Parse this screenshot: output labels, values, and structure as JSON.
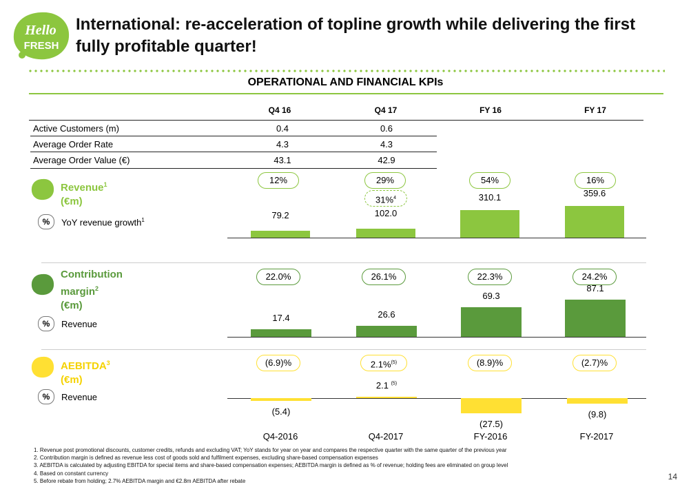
{
  "brand": {
    "logo_line1": "Hello",
    "logo_line2": "FRESH",
    "green": "#8cc63f",
    "dark_green": "#5a9a3c",
    "yellow": "#ffe033"
  },
  "title": "International: re-acceleration of topline growth while delivering the first fully profitable quarter!",
  "section_title": "OPERATIONAL AND FINANCIAL KPIs",
  "columns": [
    "Q4 16",
    "Q4 17",
    "FY 16",
    "FY 17"
  ],
  "kpis": [
    {
      "label": "Active Customers (m)",
      "q4_16": "0.4",
      "q4_17": "0.6"
    },
    {
      "label": "Average Order Rate",
      "q4_16": "4.3",
      "q4_17": "4.3"
    },
    {
      "label": "Average Order Value (€)",
      "q4_16": "43.1",
      "q4_17": "42.9"
    }
  ],
  "revenue": {
    "label_line1": "Revenue",
    "label_sup": "1",
    "label_line2": "(€m)",
    "badge": "%",
    "sub_label": "YoY revenue growth",
    "sub_sup": "1",
    "growth": [
      "12%",
      "29%",
      "54%",
      "16%"
    ],
    "constant_currency": "31%",
    "constant_currency_sup": "4"
  },
  "contribution": {
    "label_line1": "Contribution",
    "label_line2": "margin",
    "label_sup": "2",
    "label_line3": "(€m)",
    "badge": "%",
    "sub_label": "Revenue",
    "margin": [
      "22.0%",
      "26.1%",
      "22.3%",
      "24.2%"
    ]
  },
  "aebitda": {
    "label_line1": "AEBITDA",
    "label_sup": "3",
    "label_line2": "(€m)",
    "badge": "%",
    "sub_label": "Revenue",
    "margin": [
      "(6.9)%",
      "2.1%",
      "(8.9)%",
      "(2.7)%"
    ],
    "margin_q417_sup": "(5)",
    "value_q417_sup": "(5)"
  },
  "chart_data": [
    {
      "type": "bar",
      "title": "Revenue (€m)",
      "categories": [
        "Q4-2016",
        "Q4-2017",
        "FY-2016",
        "FY-2017"
      ],
      "values": [
        79.2,
        102.0,
        310.1,
        359.6
      ],
      "labels": [
        "79.2",
        "102.0",
        "310.1",
        "359.6"
      ],
      "ylim": [
        0,
        360
      ]
    },
    {
      "type": "bar",
      "title": "Contribution margin (€m)",
      "categories": [
        "Q4-2016",
        "Q4-2017",
        "FY-2016",
        "FY-2017"
      ],
      "values": [
        17.4,
        26.6,
        69.3,
        87.1
      ],
      "labels": [
        "17.4",
        "26.6",
        "69.3",
        "87.1"
      ],
      "ylim": [
        0,
        87.1
      ]
    },
    {
      "type": "bar",
      "title": "AEBITDA (€m)",
      "categories": [
        "Q4-2016",
        "Q4-2017",
        "FY-2016",
        "FY-2017"
      ],
      "values": [
        -5.4,
        2.1,
        -27.5,
        -9.8
      ],
      "labels": [
        "(5.4)",
        "2.1",
        "(27.5)",
        "(9.8)"
      ],
      "ylim": [
        -27.5,
        2.1
      ]
    }
  ],
  "x_labels": [
    "Q4-2016",
    "Q4-2017",
    "FY-2016",
    "FY-2017"
  ],
  "footnotes": [
    "1. Revenue post promotional discounts, customer credits, refunds and excluding VAT; YoY stands for year on year and compares the respective quarter with the same quarter of the previous year",
    "2. Contribution margin is defined as revenue less cost of goods sold and fulfilment expenses, excluding share-based compensation expenses",
    "3. AEBITDA is calculated by adjusting EBITDA for special items and share-based compensation expenses; AEBITDA margin is defined as % of revenue; holding fees are eliminated on group level",
    "4. Based on constant currency",
    "5. Before rebate from holding; 2.7% AEBITDA margin and €2.8m AEBITDA after rebate"
  ],
  "page_number": "14"
}
